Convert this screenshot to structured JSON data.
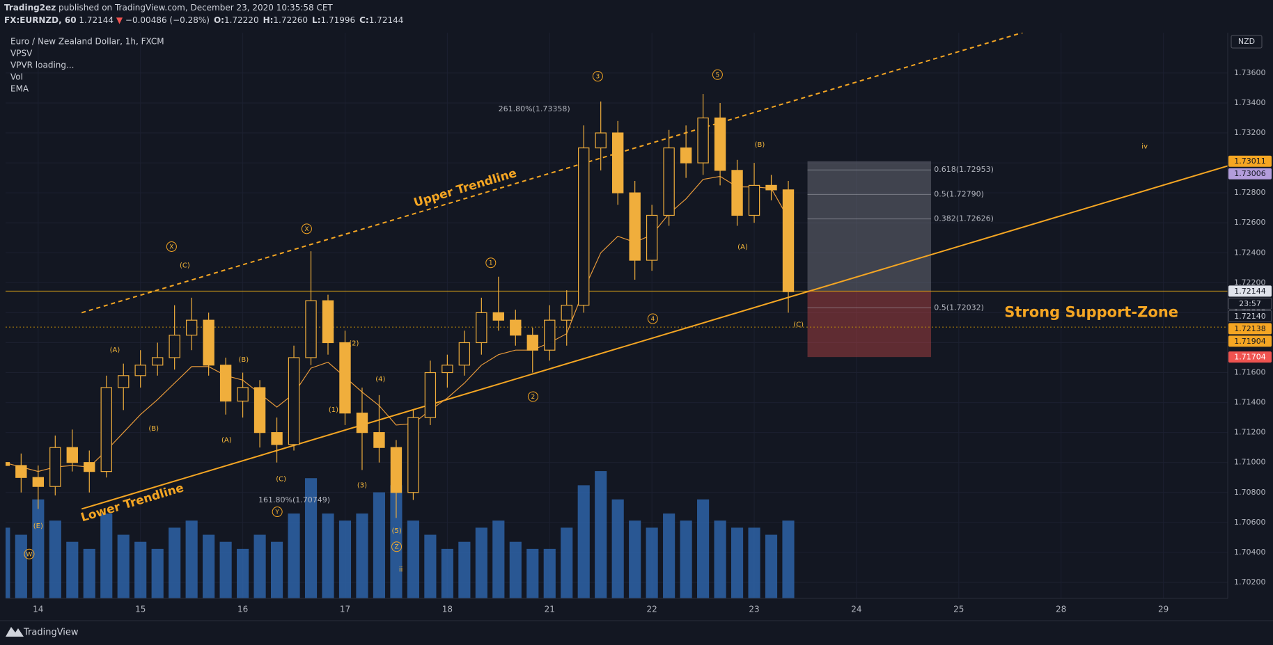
{
  "header": {
    "author": "Trading2ez",
    "published": "published on TradingView.com, December 23, 2020 10:35:58 CET",
    "symbol": "FX:EURNZD, 60",
    "last": "1.72144",
    "arrow": "▼",
    "change": "−0.00486 (−0.28%)",
    "ohlc": [
      {
        "label": "O:",
        "value": "1.72220"
      },
      {
        "label": "H:",
        "value": "1.72260"
      },
      {
        "label": "L:",
        "value": "1.71996"
      },
      {
        "label": "C:",
        "value": "1.72144"
      }
    ]
  },
  "legend": [
    "Euro / New Zealand Dollar, 1h, FXCM",
    "VPSV",
    "VPVR loading...",
    "Vol",
    "EMA"
  ],
  "footer": "TradingView",
  "chart_data": {
    "type": "candlestick",
    "currency": "NZD",
    "xlim": [
      -7.65,
      279.1
    ],
    "ylim": [
      1.70093,
      1.73869
    ],
    "y2lim": [
      0,
      400
    ],
    "xticks": [
      {
        "value": 0,
        "label": "14"
      },
      {
        "value": 24,
        "label": "15"
      },
      {
        "value": 48,
        "label": "16"
      },
      {
        "value": 72,
        "label": "17"
      },
      {
        "value": 96,
        "label": "18"
      },
      {
        "value": 120,
        "label": "21"
      },
      {
        "value": 144,
        "label": "22"
      },
      {
        "value": 168,
        "label": "23"
      },
      {
        "value": 192,
        "label": "24"
      },
      {
        "value": 216,
        "label": "25"
      },
      {
        "value": 240,
        "label": "28"
      },
      {
        "value": 264,
        "label": "29"
      }
    ],
    "yticks": [
      {
        "value": 1.702,
        "label": "1.70200"
      },
      {
        "value": 1.704,
        "label": "1.70400"
      },
      {
        "value": 1.706,
        "label": "1.70600"
      },
      {
        "value": 1.708,
        "label": "1.70800"
      },
      {
        "value": 1.71,
        "label": "1.71000"
      },
      {
        "value": 1.712,
        "label": "1.71200"
      },
      {
        "value": 1.714,
        "label": "1.71400"
      },
      {
        "value": 1.716,
        "label": "1.71600"
      },
      {
        "value": 1.718,
        "label": "1.71800"
      },
      {
        "value": 1.72,
        "label": "1.72000"
      },
      {
        "value": 1.722,
        "label": "1.72200"
      },
      {
        "value": 1.724,
        "label": "1.72400"
      },
      {
        "value": 1.726,
        "label": "1.72600"
      },
      {
        "value": 1.728,
        "label": "1.72800"
      },
      {
        "value": 1.73,
        "label": "1.73000"
      },
      {
        "value": 1.732,
        "label": "1.73200"
      },
      {
        "value": 1.734,
        "label": "1.73400"
      },
      {
        "value": 1.736,
        "label": "1.73600"
      }
    ],
    "candles": {
      "color": "#f0ae3c",
      "x": [
        -8,
        -4,
        0,
        4,
        8,
        12,
        16,
        20,
        24,
        28,
        32,
        36,
        40,
        44,
        48,
        52,
        56,
        60,
        64,
        68,
        72,
        76,
        80,
        84,
        88,
        92,
        96,
        100,
        104,
        108,
        112,
        116,
        120,
        124,
        128,
        132,
        136,
        140,
        144,
        148,
        152,
        156,
        160,
        164,
        168,
        172,
        176
      ],
      "open": [
        1.71,
        1.7098,
        1.709,
        1.7084,
        1.711,
        1.71,
        1.7094,
        1.715,
        1.7158,
        1.7165,
        1.717,
        1.7185,
        1.7195,
        1.7165,
        1.7141,
        1.715,
        1.712,
        1.7112,
        1.717,
        1.7208,
        1.718,
        1.7133,
        1.712,
        1.711,
        1.708,
        1.713,
        1.716,
        1.7165,
        1.718,
        1.72,
        1.7195,
        1.7185,
        1.7175,
        1.7195,
        1.7205,
        1.731,
        1.732,
        1.728,
        1.7235,
        1.7265,
        1.731,
        1.73,
        1.733,
        1.7295,
        1.7265,
        1.7285,
        1.7282
      ],
      "high": [
        1.711,
        1.7106,
        1.7098,
        1.7118,
        1.7122,
        1.7108,
        1.7158,
        1.7166,
        1.7175,
        1.718,
        1.7205,
        1.721,
        1.72,
        1.717,
        1.716,
        1.7155,
        1.713,
        1.7178,
        1.7241,
        1.7212,
        1.7188,
        1.715,
        1.7145,
        1.7115,
        1.7135,
        1.7168,
        1.7172,
        1.7188,
        1.721,
        1.7224,
        1.7202,
        1.719,
        1.7205,
        1.7215,
        1.7325,
        1.7341,
        1.7328,
        1.7288,
        1.7272,
        1.7322,
        1.7325,
        1.7346,
        1.734,
        1.7302,
        1.73,
        1.7292,
        1.7288
      ],
      "low": [
        1.709,
        1.708,
        1.7069,
        1.7078,
        1.7094,
        1.708,
        1.709,
        1.7135,
        1.715,
        1.7158,
        1.7162,
        1.7175,
        1.7158,
        1.7132,
        1.713,
        1.711,
        1.71,
        1.7108,
        1.7165,
        1.7172,
        1.7125,
        1.7095,
        1.71,
        1.7063,
        1.7075,
        1.7125,
        1.715,
        1.7158,
        1.7172,
        1.7188,
        1.7178,
        1.716,
        1.7168,
        1.7178,
        1.72,
        1.7295,
        1.7272,
        1.7222,
        1.7228,
        1.7258,
        1.729,
        1.7292,
        1.7285,
        1.7258,
        1.726,
        1.7275,
        1.72
      ],
      "close": [
        1.7098,
        1.709,
        1.7084,
        1.711,
        1.71,
        1.7094,
        1.715,
        1.7158,
        1.7165,
        1.717,
        1.7185,
        1.7195,
        1.7165,
        1.7141,
        1.715,
        1.712,
        1.7112,
        1.717,
        1.7208,
        1.718,
        1.7133,
        1.712,
        1.711,
        1.708,
        1.713,
        1.716,
        1.7165,
        1.718,
        1.72,
        1.7195,
        1.7185,
        1.7175,
        1.7195,
        1.7205,
        1.731,
        1.732,
        1.728,
        1.7235,
        1.7265,
        1.731,
        1.73,
        1.733,
        1.7295,
        1.7265,
        1.7285,
        1.7282,
        1.7214
      ]
    },
    "volume": {
      "axis": "y2",
      "color": "#2f68b0",
      "values": [
        50,
        45,
        70,
        55,
        40,
        35,
        60,
        45,
        40,
        35,
        50,
        55,
        45,
        40,
        35,
        45,
        40,
        60,
        85,
        60,
        55,
        60,
        75,
        80,
        55,
        45,
        35,
        40,
        50,
        55,
        40,
        35,
        35,
        50,
        80,
        90,
        70,
        55,
        50,
        60,
        55,
        70,
        55,
        50,
        50,
        45,
        55
      ]
    },
    "ema": {
      "color": "#e89a3a",
      "values": [
        1.71,
        1.7097,
        1.7094,
        1.7097,
        1.7098,
        1.7097,
        1.7108,
        1.712,
        1.7132,
        1.7142,
        1.7153,
        1.7164,
        1.7164,
        1.7158,
        1.7155,
        1.7146,
        1.7137,
        1.7146,
        1.7163,
        1.7167,
        1.7157,
        1.7147,
        1.7138,
        1.7125,
        1.7126,
        1.7135,
        1.7143,
        1.7153,
        1.7165,
        1.7172,
        1.7175,
        1.7175,
        1.718,
        1.7186,
        1.7215,
        1.724,
        1.7251,
        1.7247,
        1.7252,
        1.7266,
        1.7276,
        1.7289,
        1.7291,
        1.7284,
        1.7284,
        1.7283,
        1.7263
      ]
    },
    "trendlines": [
      {
        "label": "Upper Trendline",
        "x": [
          10.2,
          231
        ],
        "y": [
          1.72,
          1.7387
        ],
        "dashed": true,
        "label_x": 100.2,
        "label_y": 1.72831,
        "color": "#f5a623"
      },
      {
        "label": "Lower Trendline",
        "x": [
          10.2,
          279.1
        ],
        "y": [
          1.7069,
          1.7298
        ],
        "dashed": false,
        "label_x": 22.1,
        "label_y": 1.7073,
        "color": "#f5a623"
      }
    ],
    "hlines": [
      {
        "value": 1.72144,
        "dashed": false,
        "color": "#d4a017"
      },
      {
        "value": 1.71904,
        "dashed": true,
        "color": "#b8860b"
      }
    ],
    "position": {
      "x": [
        180.5,
        209.5
      ],
      "top": 1.73011,
      "entry": 1.72144,
      "stop": 1.71704
    },
    "fib_labels": [
      {
        "label": "0.618(1.72953)",
        "value": 1.72953,
        "x": 210.2
      },
      {
        "label": "0.5(1.72790)",
        "value": 1.7279,
        "x": 210.2
      },
      {
        "label": "0.382(1.72626)",
        "value": 1.72626,
        "x": 210.2
      },
      {
        "label": "0.5(1.72032)",
        "value": 1.72032,
        "x": 210.2
      },
      {
        "label": "261.80%(1.73358)",
        "value": 1.73358,
        "x": 124.8,
        "anchor": "end"
      },
      {
        "label": "161.80%(1.70749)",
        "value": 1.70749,
        "x": 68.5,
        "anchor": "end"
      }
    ],
    "annotations": [
      {
        "text": "W",
        "x": -2.1,
        "y": 1.70389,
        "circled": true
      },
      {
        "text": "X",
        "x": 31.3,
        "y": 1.72441,
        "circled": true
      },
      {
        "text": "X",
        "x": 63.0,
        "y": 1.7256,
        "circled": true
      },
      {
        "text": "Y",
        "x": 56.1,
        "y": 1.70671,
        "circled": true
      },
      {
        "text": "Z",
        "x": 84.1,
        "y": 1.70438,
        "circled": true
      },
      {
        "text": "1",
        "x": 106.2,
        "y": 1.72333,
        "circled": true
      },
      {
        "text": "2",
        "x": 116.1,
        "y": 1.7144,
        "circled": true
      },
      {
        "text": "3",
        "x": 131.3,
        "y": 1.73578,
        "circled": true
      },
      {
        "text": "4",
        "x": 144.2,
        "y": 1.7196,
        "circled": true
      },
      {
        "text": "5",
        "x": 159.4,
        "y": 1.73589,
        "circled": true
      },
      {
        "text": "ii",
        "x": 85.1,
        "y": 1.70287,
        "circled": false
      },
      {
        "text": "iv",
        "x": 259.6,
        "y": 1.73113,
        "circled": false
      },
      {
        "text": "(E)",
        "x": 0,
        "y": 1.70579,
        "circled": false
      },
      {
        "text": "(C)",
        "x": 34.4,
        "y": 1.72317,
        "circled": false
      },
      {
        "text": "(A)",
        "x": 18.0,
        "y": 1.71754,
        "circled": false
      },
      {
        "text": "(B)",
        "x": 27.1,
        "y": 1.71229,
        "circled": false
      },
      {
        "text": "(B)",
        "x": 48.2,
        "y": 1.71689,
        "circled": false
      },
      {
        "text": "(A)",
        "x": 44.2,
        "y": 1.71153,
        "circled": false
      },
      {
        "text": "(C)",
        "x": 57.0,
        "y": 1.70893,
        "circled": false
      },
      {
        "text": "(2)",
        "x": 74.1,
        "y": 1.71797,
        "circled": false
      },
      {
        "text": "(4)",
        "x": 80.3,
        "y": 1.71559,
        "circled": false
      },
      {
        "text": "(1)",
        "x": 69.3,
        "y": 1.71353,
        "circled": false
      },
      {
        "text": "(3)",
        "x": 76.0,
        "y": 1.7085,
        "circled": false
      },
      {
        "text": "(5)",
        "x": 84.1,
        "y": 1.70547,
        "circled": false
      },
      {
        "text": "(B)",
        "x": 169.3,
        "y": 1.73124,
        "circled": false
      },
      {
        "text": "(A)",
        "x": 165.3,
        "y": 1.72441,
        "circled": false
      },
      {
        "text": "(C)",
        "x": 178.4,
        "y": 1.71922,
        "circled": false
      }
    ],
    "texts": [
      {
        "text": "Strong Support-Zone",
        "x": 247.1,
        "y": 1.72,
        "color": "#f5a623"
      }
    ],
    "price_labels": [
      {
        "value": 1.73011,
        "label": "1.73011",
        "bg": "#f5a623",
        "fg": "#131722"
      },
      {
        "value": 1.73006,
        "label": "1.73006",
        "bg": "#b39ddb",
        "fg": "#131722"
      },
      {
        "value": 1.72144,
        "label": "1.72144",
        "bg": "#e0e3eb",
        "fg": "#131722"
      },
      {
        "label": "23:57",
        "bg": "#131722",
        "fg": "#d1d4dc"
      },
      {
        "value": 1.7214,
        "label": "1.72140",
        "bg": "#131722",
        "fg": "#d1d4dc"
      },
      {
        "value": 1.72138,
        "label": "1.72138",
        "bg": "#f5a623",
        "fg": "#131722"
      },
      {
        "value": 1.71904,
        "label": "1.71904",
        "bg": "#f5a623",
        "fg": "#131722"
      },
      {
        "value": 1.71704,
        "label": "1.71704",
        "bg": "#ef5350",
        "fg": "#ffffff"
      }
    ]
  }
}
